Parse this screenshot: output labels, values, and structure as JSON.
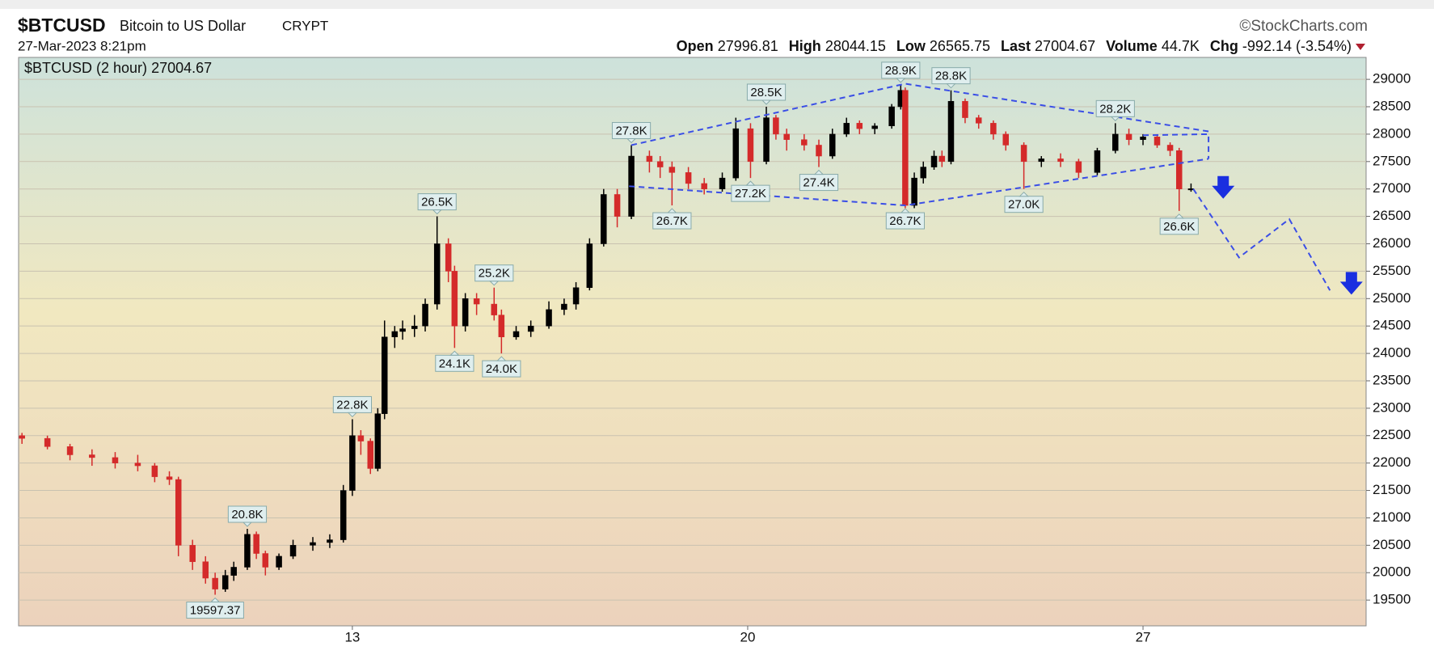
{
  "chart_data": {
    "type": "candlestick",
    "symbol": "$BTCUSD",
    "title": "Bitcoin to US Dollar",
    "exchange": "CRYPT",
    "date": "27-Mar-2023 8:21pm",
    "source": "©StockCharts.com",
    "open_label": "Open",
    "open_value": 27996.81,
    "high_label": "High",
    "high_value": 28044.15,
    "low_label": "Low",
    "low_value": 26565.75,
    "last_label": "Last",
    "last_value": 27004.67,
    "volume_label": "Volume",
    "volume_value": "44.7K",
    "change_label": "Chg",
    "change_value": "-992.14 (-3.54%)",
    "series_name": "$BTCUSD (2 hour)",
    "up_color": "#000000",
    "down_color": "#d42a2a",
    "trend_color": "#3a4ee6",
    "arrow_color": "#1a2fe0",
    "grid": true,
    "xlim": [
      7.09,
      30.95
    ],
    "xticks": [
      13,
      20,
      27
    ],
    "ylim": [
      19030,
      29400
    ],
    "yticks": [
      19500,
      20000,
      20500,
      21000,
      21500,
      22000,
      22500,
      23000,
      23500,
      24000,
      24500,
      25000,
      25500,
      26000,
      26500,
      27000,
      27500,
      28000,
      28500,
      29000
    ],
    "x": [
      7.15,
      7.6,
      8.0,
      8.39,
      8.8,
      9.2,
      9.5,
      9.76,
      9.92,
      10.17,
      10.4,
      10.57,
      10.75,
      10.9,
      11.14,
      11.3,
      11.46,
      11.7,
      11.95,
      12.3,
      12.6,
      12.84,
      13.0,
      13.15,
      13.32,
      13.45,
      13.57,
      13.75,
      13.89,
      14.1,
      14.29,
      14.5,
      14.7,
      14.81,
      15.0,
      15.2,
      15.51,
      15.64,
      15.9,
      16.16,
      16.48,
      16.75,
      16.96,
      17.2,
      17.45,
      17.69,
      17.94,
      18.26,
      18.45,
      18.66,
      18.95,
      19.23,
      19.55,
      19.79,
      20.05,
      20.33,
      20.5,
      20.69,
      21.0,
      21.26,
      21.5,
      21.75,
      21.98,
      22.25,
      22.55,
      22.71,
      22.79,
      22.95,
      23.11,
      23.3,
      23.44,
      23.6,
      23.85,
      24.09,
      24.35,
      24.57,
      24.89,
      25.2,
      25.54,
      25.86,
      26.19,
      26.51,
      26.75,
      27.0,
      27.25,
      27.48,
      27.64,
      27.85
    ],
    "open": [
      22500,
      22450,
      22300,
      22150,
      22100,
      22000,
      21950,
      21750,
      21700,
      20500,
      20200,
      19900,
      19700,
      19950,
      20100,
      20700,
      20350,
      20100,
      20300,
      20500,
      20550,
      20600,
      21500,
      22500,
      22400,
      21900,
      22900,
      24300,
      24400,
      24450,
      24500,
      24900,
      26000,
      25500,
      24500,
      25000,
      24900,
      24700,
      24300,
      24400,
      24500,
      24800,
      24900,
      25200,
      26000,
      26900,
      26500,
      27600,
      27500,
      27400,
      27300,
      27100,
      27000,
      27200,
      28100,
      27500,
      28300,
      28000,
      27900,
      27800,
      27600,
      28000,
      28200,
      28100,
      28150,
      28500,
      28800,
      26700,
      27200,
      27400,
      27600,
      27500,
      28600,
      28300,
      28200,
      28000,
      27800,
      27500,
      27550,
      27500,
      27300,
      27700,
      28000,
      27900,
      27950,
      27800,
      27700,
      27000
    ],
    "high": [
      22550,
      22500,
      22350,
      22250,
      22200,
      22150,
      22000,
      21850,
      21750,
      20600,
      20300,
      20000,
      20050,
      20200,
      20800,
      20750,
      20400,
      20350,
      20600,
      20650,
      20700,
      21600,
      22800,
      22600,
      22450,
      23000,
      24600,
      24500,
      24600,
      24700,
      25000,
      26500,
      26100,
      25600,
      25100,
      25100,
      25200,
      24800,
      24500,
      24600,
      24950,
      25000,
      25300,
      26100,
      27000,
      27000,
      27800,
      27700,
      27600,
      27500,
      27400,
      27200,
      27300,
      28300,
      28200,
      28500,
      28350,
      28100,
      28000,
      27900,
      28100,
      28300,
      28250,
      28200,
      28550,
      28900,
      28850,
      27300,
      27500,
      27700,
      27700,
      28800,
      28650,
      28350,
      28250,
      28050,
      27850,
      27600,
      27650,
      27550,
      27750,
      28200,
      28100,
      28000,
      28000,
      27850,
      27750,
      27100
    ],
    "low": [
      22350,
      22250,
      22050,
      21950,
      21900,
      21850,
      21650,
      21600,
      20300,
      20050,
      19800,
      19597.37,
      19650,
      19850,
      20050,
      20250,
      19950,
      20050,
      20250,
      20400,
      20450,
      20550,
      21400,
      22150,
      21800,
      21850,
      22800,
      24100,
      24250,
      24300,
      24400,
      24800,
      25300,
      24100,
      24400,
      24700,
      24600,
      24000,
      24250,
      24300,
      24450,
      24700,
      24800,
      25150,
      25950,
      26300,
      26450,
      27300,
      27200,
      26700,
      27000,
      26900,
      26950,
      27150,
      27200,
      27450,
      27900,
      27700,
      27700,
      27400,
      27550,
      27950,
      28000,
      28000,
      28100,
      28450,
      26650,
      26650,
      27100,
      27350,
      27400,
      27450,
      28200,
      28100,
      27900,
      27700,
      27000,
      27400,
      27400,
      27200,
      27250,
      27650,
      27800,
      27800,
      27750,
      27600,
      26600,
      26950
    ],
    "close": [
      22450,
      22300,
      22150,
      22100,
      22000,
      21950,
      21750,
      21700,
      20500,
      20200,
      19900,
      19700,
      19950,
      20100,
      20700,
      20350,
      20100,
      20300,
      20500,
      20550,
      20600,
      21500,
      22500,
      22400,
      21900,
      22900,
      24300,
      24400,
      24450,
      24500,
      24900,
      26000,
      25500,
      24500,
      25000,
      24900,
      24700,
      24300,
      24400,
      24500,
      24800,
      24900,
      25200,
      26000,
      26900,
      26500,
      27600,
      27500,
      27400,
      27300,
      27100,
      27000,
      27200,
      28100,
      27500,
      28300,
      28000,
      27900,
      27800,
      27600,
      28000,
      28200,
      28100,
      28150,
      28500,
      28800,
      26700,
      27200,
      27400,
      27600,
      27500,
      28600,
      28300,
      28200,
      28000,
      27800,
      27500,
      27550,
      27500,
      27300,
      27700,
      28000,
      27900,
      27950,
      27800,
      27700,
      27000,
      27004.67
    ],
    "annotations": [
      {
        "x": 10.57,
        "value": 19597.37,
        "label": "19597.37",
        "position": "below"
      },
      {
        "x": 11.14,
        "value": 20800,
        "label": "20.8K",
        "position": "above"
      },
      {
        "x": 13.0,
        "value": 22800,
        "label": "22.8K",
        "position": "above"
      },
      {
        "x": 14.5,
        "value": 26500,
        "label": "26.5K",
        "position": "above"
      },
      {
        "x": 14.81,
        "value": 24100,
        "label": "24.1K",
        "position": "below"
      },
      {
        "x": 15.51,
        "value": 25200,
        "label": "25.2K",
        "position": "above"
      },
      {
        "x": 15.64,
        "value": 24000,
        "label": "24.0K",
        "position": "below"
      },
      {
        "x": 17.94,
        "value": 27800,
        "label": "27.8K",
        "position": "above"
      },
      {
        "x": 18.66,
        "value": 26700,
        "label": "26.7K",
        "position": "below"
      },
      {
        "x": 20.05,
        "value": 27200,
        "label": "27.2K",
        "position": "below"
      },
      {
        "x": 20.33,
        "value": 28500,
        "label": "28.5K",
        "position": "above"
      },
      {
        "x": 21.26,
        "value": 27400,
        "label": "27.4K",
        "position": "below"
      },
      {
        "x": 22.71,
        "value": 28900,
        "label": "28.9K",
        "position": "above"
      },
      {
        "x": 22.79,
        "value": 26700,
        "label": "26.7K",
        "position": "below"
      },
      {
        "x": 23.6,
        "value": 28800,
        "label": "28.8K",
        "position": "above"
      },
      {
        "x": 24.89,
        "value": 27000,
        "label": "27.0K",
        "position": "below"
      },
      {
        "x": 26.51,
        "value": 28200,
        "label": "28.2K",
        "position": "above"
      },
      {
        "x": 27.64,
        "value": 26600,
        "label": "26.6K",
        "position": "below"
      }
    ],
    "trendlines": [
      {
        "x": [
          17.94,
          22.79,
          28.16
        ],
        "y": [
          27800,
          28920,
          28050
        ]
      },
      {
        "x": [
          17.9,
          22.79,
          28.16
        ],
        "y": [
          27050,
          26700,
          27550
        ]
      },
      {
        "x": [
          27.0,
          28.16,
          28.16
        ],
        "y": [
          27980,
          28000,
          27550
        ]
      },
      {
        "x": [
          27.89,
          28.7,
          29.59,
          30.31
        ],
        "y": [
          27000,
          25750,
          26450,
          25150
        ]
      }
    ],
    "arrows": [
      {
        "x": 28.42,
        "value": 27000
      },
      {
        "x": 30.69,
        "value": 25250
      }
    ]
  }
}
